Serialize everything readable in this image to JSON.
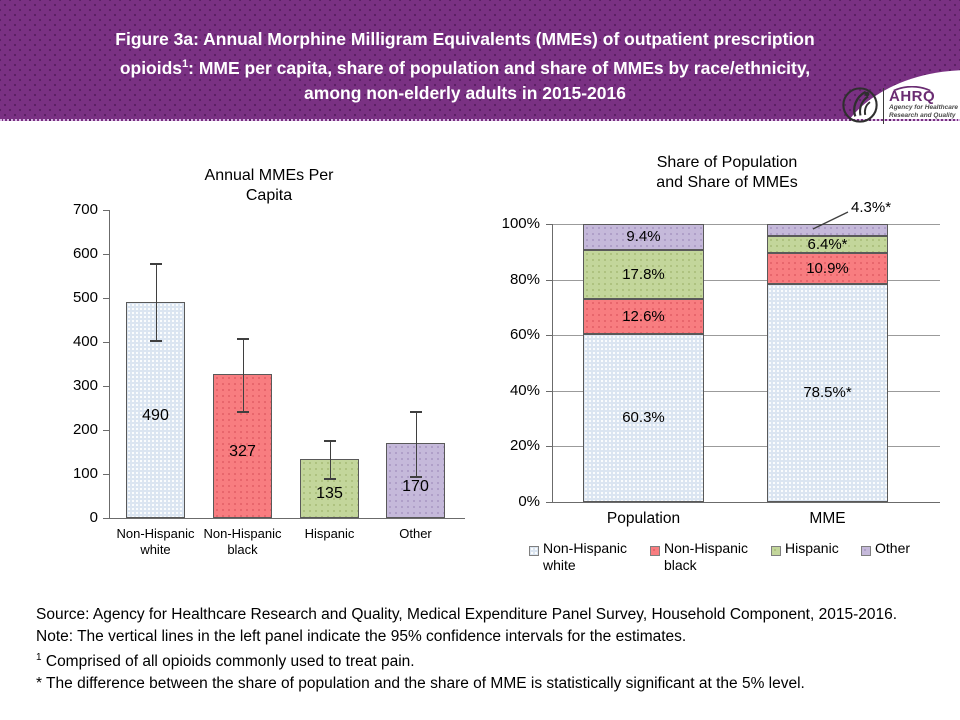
{
  "header": {
    "banner_color": "#7a3183",
    "title_line1": "Figure 3a: Annual Morphine Milligram Equivalents (MMEs) of outpatient prescription",
    "title_line2": {
      "pre": "opioids",
      "sup": "1",
      "post": ": MME per capita, share of population and share of MMEs by race/ethnicity,"
    },
    "title_line3": "among non-elderly adults in 2015-2016",
    "logo": {
      "org": "AHRQ",
      "tagline1": "Agency for Healthcare",
      "tagline2": "Research and Quality"
    }
  },
  "chart_data": [
    {
      "type": "bar",
      "title_lines": [
        "Annual MMEs Per",
        "Capita"
      ],
      "categories": [
        "Non-Hispanic white",
        "Non-Hispanic black",
        "Hispanic",
        "Other"
      ],
      "values": [
        490,
        327,
        135,
        170
      ],
      "value_labels": [
        "490",
        "327",
        "135",
        "170"
      ],
      "ci_low": [
        402,
        240,
        89,
        93
      ],
      "ci_high": [
        580,
        410,
        177,
        243
      ],
      "ylim": [
        0,
        700
      ],
      "yticks": [
        0,
        100,
        200,
        300,
        400,
        500,
        600,
        700
      ],
      "bar_colors": [
        "#dbe5f1",
        "#f87d80",
        "#c3d69b",
        "#c5b9da"
      ],
      "grid": false,
      "note": "error bars show 95% confidence intervals"
    },
    {
      "type": "bar",
      "subtype": "stacked",
      "title_lines": [
        "Share of Population",
        "and Share of MMEs"
      ],
      "categories": [
        "Population",
        "MME"
      ],
      "series": [
        {
          "name": "Non-Hispanic white",
          "color": "#dbe5f1",
          "values": [
            60.3,
            78.5
          ],
          "labels": [
            "60.3%",
            "78.5%*"
          ]
        },
        {
          "name": "Non-Hispanic black",
          "color": "#f87d80",
          "values": [
            12.6,
            10.9
          ],
          "labels": [
            "12.6%",
            "10.9%"
          ]
        },
        {
          "name": "Hispanic",
          "color": "#c3d69b",
          "values": [
            17.8,
            6.4
          ],
          "labels": [
            "17.8%",
            "6.4%*"
          ]
        },
        {
          "name": "Other",
          "color": "#c5b9da",
          "values": [
            9.4,
            4.3
          ],
          "labels": [
            "9.4%",
            "4.3%*"
          ],
          "label_outside_category": "MME"
        }
      ],
      "ylim": [
        0,
        100
      ],
      "yticks": [
        0,
        20,
        40,
        60,
        80,
        100
      ],
      "ytick_suffix": "%",
      "grid": true,
      "legend_position": "bottom",
      "legend": [
        "Non-Hispanic white",
        "Non-Hispanic black",
        "Hispanic",
        "Other"
      ],
      "outside_annotation": "4.3%*"
    }
  ],
  "notes": {
    "source": "Source: Agency for Healthcare Research and Quality, Medical Expenditure Panel Survey, Household Component, 2015-2016.",
    "note": "Note: The vertical lines in the left panel indicate the 95% confidence intervals for the estimates.",
    "footnote1": {
      "sup": "1",
      "text": " Comprised of all opioids commonly used to treat pain."
    },
    "footnote_star": "* The difference between the share of population and the share of MME is statistically significant at the 5% level."
  }
}
